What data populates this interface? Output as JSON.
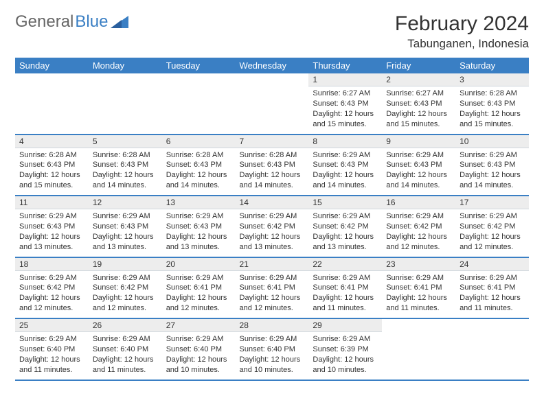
{
  "logo": {
    "part1": "General",
    "part2": "Blue"
  },
  "title": "February 2024",
  "location": "Tabunganen, Indonesia",
  "colors": {
    "header_bg": "#3a7fc4",
    "header_text": "#ffffff",
    "daynum_bg": "#ededed",
    "row_divider": "#3a7fc4",
    "text": "#333333"
  },
  "weekdays": [
    "Sunday",
    "Monday",
    "Tuesday",
    "Wednesday",
    "Thursday",
    "Friday",
    "Saturday"
  ],
  "weeks": [
    [
      null,
      null,
      null,
      null,
      {
        "n": "1",
        "sr": "Sunrise: 6:27 AM",
        "ss": "Sunset: 6:43 PM",
        "d1": "Daylight: 12 hours",
        "d2": "and 15 minutes."
      },
      {
        "n": "2",
        "sr": "Sunrise: 6:27 AM",
        "ss": "Sunset: 6:43 PM",
        "d1": "Daylight: 12 hours",
        "d2": "and 15 minutes."
      },
      {
        "n": "3",
        "sr": "Sunrise: 6:28 AM",
        "ss": "Sunset: 6:43 PM",
        "d1": "Daylight: 12 hours",
        "d2": "and 15 minutes."
      }
    ],
    [
      {
        "n": "4",
        "sr": "Sunrise: 6:28 AM",
        "ss": "Sunset: 6:43 PM",
        "d1": "Daylight: 12 hours",
        "d2": "and 15 minutes."
      },
      {
        "n": "5",
        "sr": "Sunrise: 6:28 AM",
        "ss": "Sunset: 6:43 PM",
        "d1": "Daylight: 12 hours",
        "d2": "and 14 minutes."
      },
      {
        "n": "6",
        "sr": "Sunrise: 6:28 AM",
        "ss": "Sunset: 6:43 PM",
        "d1": "Daylight: 12 hours",
        "d2": "and 14 minutes."
      },
      {
        "n": "7",
        "sr": "Sunrise: 6:28 AM",
        "ss": "Sunset: 6:43 PM",
        "d1": "Daylight: 12 hours",
        "d2": "and 14 minutes."
      },
      {
        "n": "8",
        "sr": "Sunrise: 6:29 AM",
        "ss": "Sunset: 6:43 PM",
        "d1": "Daylight: 12 hours",
        "d2": "and 14 minutes."
      },
      {
        "n": "9",
        "sr": "Sunrise: 6:29 AM",
        "ss": "Sunset: 6:43 PM",
        "d1": "Daylight: 12 hours",
        "d2": "and 14 minutes."
      },
      {
        "n": "10",
        "sr": "Sunrise: 6:29 AM",
        "ss": "Sunset: 6:43 PM",
        "d1": "Daylight: 12 hours",
        "d2": "and 14 minutes."
      }
    ],
    [
      {
        "n": "11",
        "sr": "Sunrise: 6:29 AM",
        "ss": "Sunset: 6:43 PM",
        "d1": "Daylight: 12 hours",
        "d2": "and 13 minutes."
      },
      {
        "n": "12",
        "sr": "Sunrise: 6:29 AM",
        "ss": "Sunset: 6:43 PM",
        "d1": "Daylight: 12 hours",
        "d2": "and 13 minutes."
      },
      {
        "n": "13",
        "sr": "Sunrise: 6:29 AM",
        "ss": "Sunset: 6:43 PM",
        "d1": "Daylight: 12 hours",
        "d2": "and 13 minutes."
      },
      {
        "n": "14",
        "sr": "Sunrise: 6:29 AM",
        "ss": "Sunset: 6:42 PM",
        "d1": "Daylight: 12 hours",
        "d2": "and 13 minutes."
      },
      {
        "n": "15",
        "sr": "Sunrise: 6:29 AM",
        "ss": "Sunset: 6:42 PM",
        "d1": "Daylight: 12 hours",
        "d2": "and 13 minutes."
      },
      {
        "n": "16",
        "sr": "Sunrise: 6:29 AM",
        "ss": "Sunset: 6:42 PM",
        "d1": "Daylight: 12 hours",
        "d2": "and 12 minutes."
      },
      {
        "n": "17",
        "sr": "Sunrise: 6:29 AM",
        "ss": "Sunset: 6:42 PM",
        "d1": "Daylight: 12 hours",
        "d2": "and 12 minutes."
      }
    ],
    [
      {
        "n": "18",
        "sr": "Sunrise: 6:29 AM",
        "ss": "Sunset: 6:42 PM",
        "d1": "Daylight: 12 hours",
        "d2": "and 12 minutes."
      },
      {
        "n": "19",
        "sr": "Sunrise: 6:29 AM",
        "ss": "Sunset: 6:42 PM",
        "d1": "Daylight: 12 hours",
        "d2": "and 12 minutes."
      },
      {
        "n": "20",
        "sr": "Sunrise: 6:29 AM",
        "ss": "Sunset: 6:41 PM",
        "d1": "Daylight: 12 hours",
        "d2": "and 12 minutes."
      },
      {
        "n": "21",
        "sr": "Sunrise: 6:29 AM",
        "ss": "Sunset: 6:41 PM",
        "d1": "Daylight: 12 hours",
        "d2": "and 12 minutes."
      },
      {
        "n": "22",
        "sr": "Sunrise: 6:29 AM",
        "ss": "Sunset: 6:41 PM",
        "d1": "Daylight: 12 hours",
        "d2": "and 11 minutes."
      },
      {
        "n": "23",
        "sr": "Sunrise: 6:29 AM",
        "ss": "Sunset: 6:41 PM",
        "d1": "Daylight: 12 hours",
        "d2": "and 11 minutes."
      },
      {
        "n": "24",
        "sr": "Sunrise: 6:29 AM",
        "ss": "Sunset: 6:41 PM",
        "d1": "Daylight: 12 hours",
        "d2": "and 11 minutes."
      }
    ],
    [
      {
        "n": "25",
        "sr": "Sunrise: 6:29 AM",
        "ss": "Sunset: 6:40 PM",
        "d1": "Daylight: 12 hours",
        "d2": "and 11 minutes."
      },
      {
        "n": "26",
        "sr": "Sunrise: 6:29 AM",
        "ss": "Sunset: 6:40 PM",
        "d1": "Daylight: 12 hours",
        "d2": "and 11 minutes."
      },
      {
        "n": "27",
        "sr": "Sunrise: 6:29 AM",
        "ss": "Sunset: 6:40 PM",
        "d1": "Daylight: 12 hours",
        "d2": "and 10 minutes."
      },
      {
        "n": "28",
        "sr": "Sunrise: 6:29 AM",
        "ss": "Sunset: 6:40 PM",
        "d1": "Daylight: 12 hours",
        "d2": "and 10 minutes."
      },
      {
        "n": "29",
        "sr": "Sunrise: 6:29 AM",
        "ss": "Sunset: 6:39 PM",
        "d1": "Daylight: 12 hours",
        "d2": "and 10 minutes."
      },
      null,
      null
    ]
  ]
}
